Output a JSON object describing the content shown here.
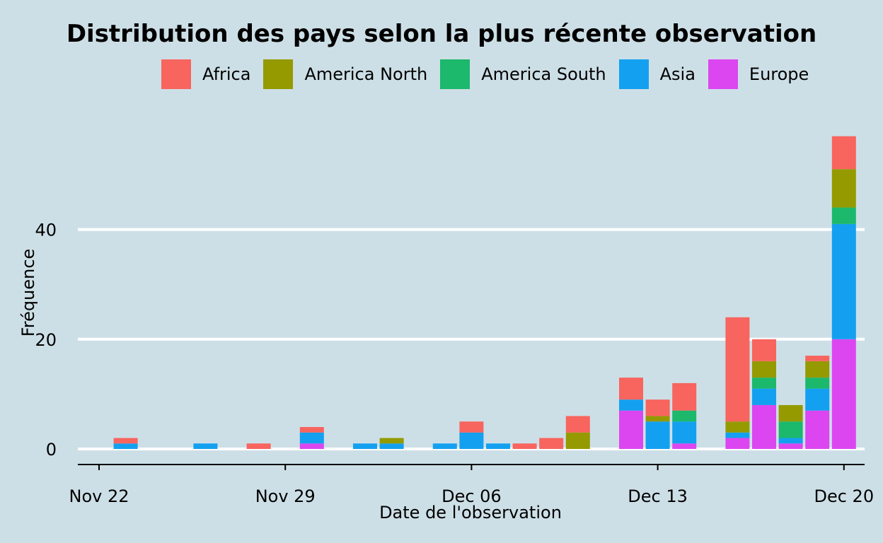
{
  "chart_data": {
    "type": "bar",
    "title": "Distribution des pays selon la plus récente observation",
    "xlabel": "Date de l'observation",
    "ylabel": "Fréquence",
    "ylim": [
      0,
      58
    ],
    "y_ticks": [
      {
        "value": 0,
        "label": "0"
      },
      {
        "value": 20,
        "label": "20"
      },
      {
        "value": 40,
        "label": "40"
      }
    ],
    "x_ticks": [
      {
        "value": 0,
        "label": "Nov 22"
      },
      {
        "value": 7,
        "label": "Nov 29"
      },
      {
        "value": 14,
        "label": "Dec 06"
      },
      {
        "value": 21,
        "label": "Dec 13"
      },
      {
        "value": 28,
        "label": "Dec 20"
      }
    ],
    "grid": true,
    "legend_position": "top",
    "series": [
      {
        "name": "Africa",
        "color": "#f8645e"
      },
      {
        "name": "America North",
        "color": "#949a00"
      },
      {
        "name": "America South",
        "color": "#1cb86c"
      },
      {
        "name": "Asia",
        "color": "#14a0f0"
      },
      {
        "name": "Europe",
        "color": "#dc46f0"
      }
    ],
    "stack_order_bottom_to_top": [
      "Europe",
      "Asia",
      "America South",
      "America North",
      "Africa"
    ],
    "bars": [
      {
        "date": "Nov 23",
        "Africa": 1,
        "America North": 0,
        "America South": 0,
        "Asia": 1,
        "Europe": 0
      },
      {
        "date": "Nov 26",
        "Africa": 0,
        "America North": 0,
        "America South": 0,
        "Asia": 1,
        "Europe": 0
      },
      {
        "date": "Nov 28",
        "Africa": 1,
        "America North": 0,
        "America South": 0,
        "Asia": 0,
        "Europe": 0
      },
      {
        "date": "Nov 30",
        "Africa": 1,
        "America North": 0,
        "America South": 0,
        "Asia": 2,
        "Europe": 1
      },
      {
        "date": "Dec 02",
        "Africa": 0,
        "America North": 0,
        "America South": 0,
        "Asia": 1,
        "Europe": 0
      },
      {
        "date": "Dec 03",
        "Africa": 0,
        "America North": 1,
        "America South": 0,
        "Asia": 1,
        "Europe": 0
      },
      {
        "date": "Dec 05",
        "Africa": 0,
        "America North": 0,
        "America South": 0,
        "Asia": 1,
        "Europe": 0
      },
      {
        "date": "Dec 06",
        "Africa": 2,
        "America North": 0,
        "America South": 0,
        "Asia": 3,
        "Europe": 0
      },
      {
        "date": "Dec 07",
        "Africa": 0,
        "America North": 0,
        "America South": 0,
        "Asia": 1,
        "Europe": 0
      },
      {
        "date": "Dec 08",
        "Africa": 1,
        "America North": 0,
        "America South": 0,
        "Asia": 0,
        "Europe": 0
      },
      {
        "date": "Dec 09",
        "Africa": 2,
        "America North": 0,
        "America South": 0,
        "Asia": 0,
        "Europe": 0
      },
      {
        "date": "Dec 10",
        "Africa": 3,
        "America North": 3,
        "America South": 0,
        "Asia": 0,
        "Europe": 0
      },
      {
        "date": "Dec 12",
        "Africa": 4,
        "America North": 0,
        "America South": 0,
        "Asia": 2,
        "Europe": 7
      },
      {
        "date": "Dec 13",
        "Africa": 3,
        "America North": 1,
        "America South": 0,
        "Asia": 5,
        "Europe": 0
      },
      {
        "date": "Dec 14",
        "Africa": 5,
        "America North": 0,
        "America South": 2,
        "Asia": 4,
        "Europe": 1
      },
      {
        "date": "Dec 16",
        "Africa": 19,
        "America North": 2,
        "America South": 0,
        "Asia": 1,
        "Europe": 2
      },
      {
        "date": "Dec 17",
        "Africa": 4,
        "America North": 3,
        "America South": 2,
        "Asia": 3,
        "Europe": 8
      },
      {
        "date": "Dec 18",
        "Africa": 0,
        "America North": 3,
        "America South": 3,
        "Asia": 1,
        "Europe": 1
      },
      {
        "date": "Dec 19",
        "Africa": 1,
        "America North": 3,
        "America South": 2,
        "Asia": 4,
        "Europe": 7
      },
      {
        "date": "Dec 20",
        "Africa": 6,
        "America North": 7,
        "America South": 3,
        "Asia": 21,
        "Europe": 20
      }
    ]
  }
}
